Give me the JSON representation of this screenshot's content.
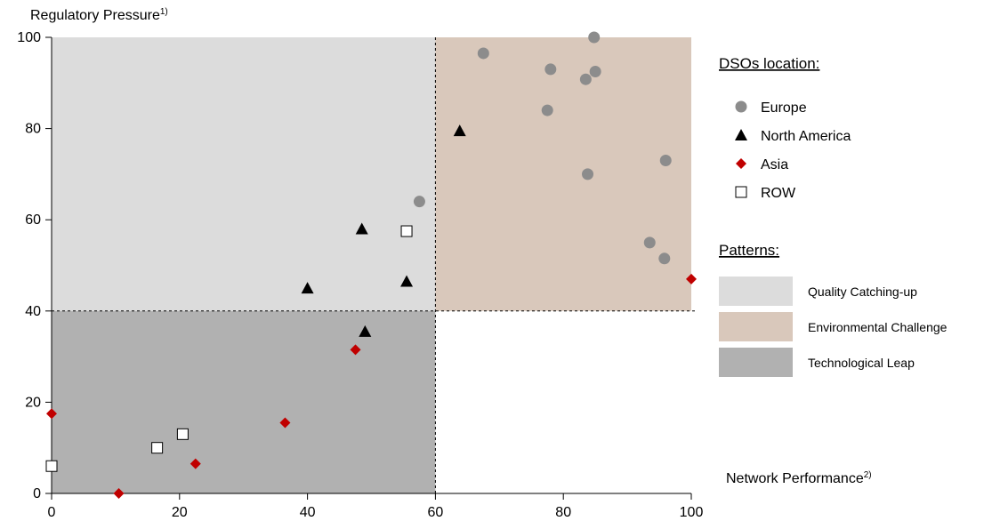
{
  "chart_data": {
    "type": "scatter",
    "title": "",
    "ylabel": "Regulatory Pressure",
    "ylabel_sup": "1)",
    "xlabel": "Network Performance",
    "xlabel_sup": "2)",
    "xlim": [
      0,
      100
    ],
    "ylim": [
      0,
      100
    ],
    "x_ticks": [
      0,
      20,
      40,
      60,
      80,
      100
    ],
    "y_ticks": [
      0,
      20,
      40,
      60,
      80,
      100
    ],
    "thresholds": {
      "x": 60,
      "y": 40
    },
    "grid": false,
    "legend_placement": "right",
    "legend_title": "DSOs location:",
    "series": [
      {
        "name": "Europe",
        "marker": "circle",
        "color": "#8c8c8c",
        "points": [
          [
            57.5,
            64
          ],
          [
            67.5,
            96.5
          ],
          [
            77.5,
            84
          ],
          [
            78,
            93
          ],
          [
            83.5,
            90.8
          ],
          [
            84.8,
            100
          ],
          [
            85,
            92.5
          ],
          [
            83.8,
            70
          ],
          [
            96,
            73
          ],
          [
            93.5,
            55
          ],
          [
            95.8,
            51.5
          ]
        ]
      },
      {
        "name": "North America",
        "marker": "triangle",
        "color": "#000000",
        "points": [
          [
            40,
            45
          ],
          [
            48.5,
            58
          ],
          [
            49,
            35.5
          ],
          [
            55.5,
            46.5
          ],
          [
            63.8,
            79.5
          ]
        ]
      },
      {
        "name": "Asia",
        "marker": "diamond",
        "color": "#c00000",
        "points": [
          [
            0,
            17.5
          ],
          [
            10.5,
            0
          ],
          [
            22.5,
            6.5
          ],
          [
            36.5,
            15.5
          ],
          [
            47.5,
            31.5
          ],
          [
            100,
            47
          ]
        ]
      },
      {
        "name": "ROW",
        "marker": "square",
        "color": "#ffffff",
        "points": [
          [
            0,
            6
          ],
          [
            16.5,
            10
          ],
          [
            20.5,
            13
          ],
          [
            55.5,
            57.5
          ]
        ]
      }
    ],
    "patterns_title": "Patterns:",
    "patterns": [
      {
        "name": "Quality Catching-up",
        "color": "#dcdcdc",
        "x": [
          0,
          60
        ],
        "y": [
          40,
          100
        ]
      },
      {
        "name": "Environmental Challenge",
        "color": "#d9c8bb",
        "x": [
          60,
          100
        ],
        "y": [
          40,
          100
        ]
      },
      {
        "name": "Technological Leap",
        "color": "#b1b1b1",
        "x": [
          0,
          60
        ],
        "y": [
          0,
          40
        ]
      }
    ]
  }
}
